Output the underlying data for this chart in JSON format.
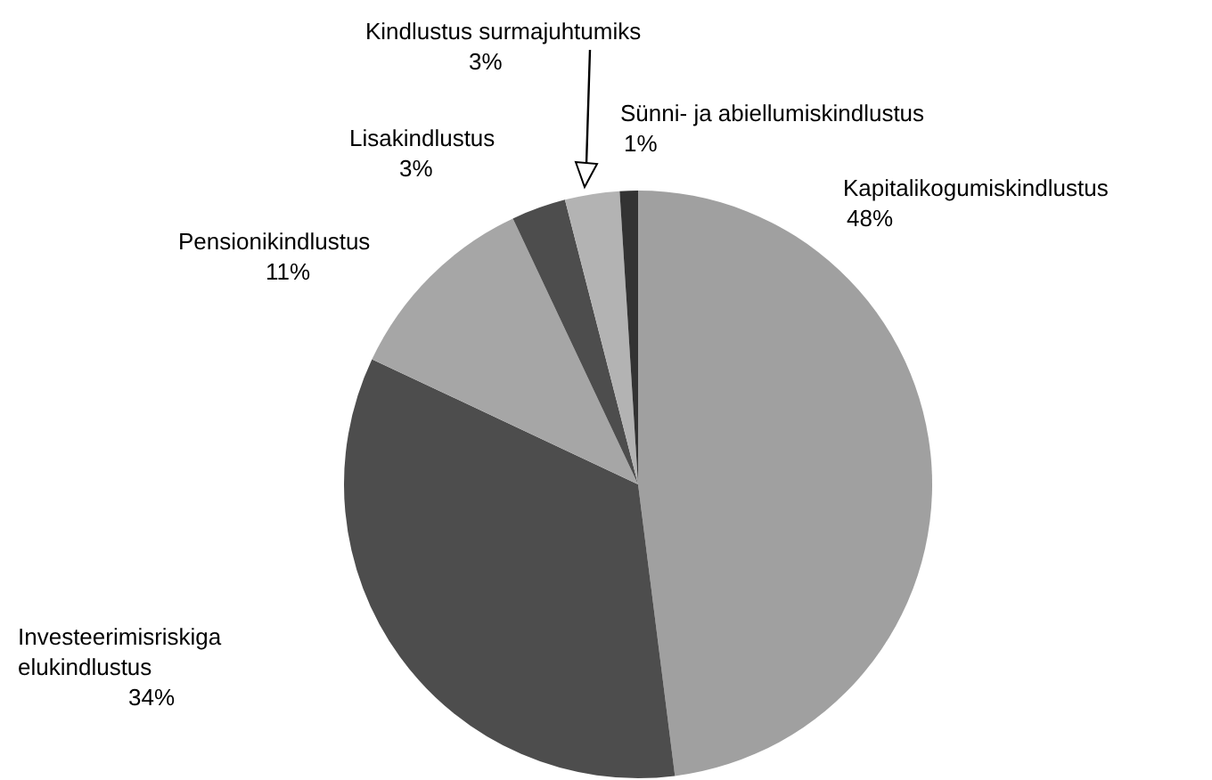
{
  "chart_data": {
    "type": "pie",
    "categories": [
      "Kapitalikogumiskindlustus",
      "Investeerimisriskiga\nelukindlustus",
      "Pensionikindlustus",
      "Lisakindlustus",
      "Kindlustus surmajuhtumiks",
      "Sünni- ja abiellumiskindlustus"
    ],
    "values": [
      48,
      34,
      11,
      3,
      3,
      1
    ],
    "value_labels": [
      "48%",
      "34%",
      "11%",
      "3%",
      "3%",
      "1%"
    ],
    "colors": [
      "#a0a0a0",
      "#4d4d4d",
      "#a6a6a6",
      "#4d4d4d",
      "#b3b3b3",
      "#333333"
    ]
  }
}
